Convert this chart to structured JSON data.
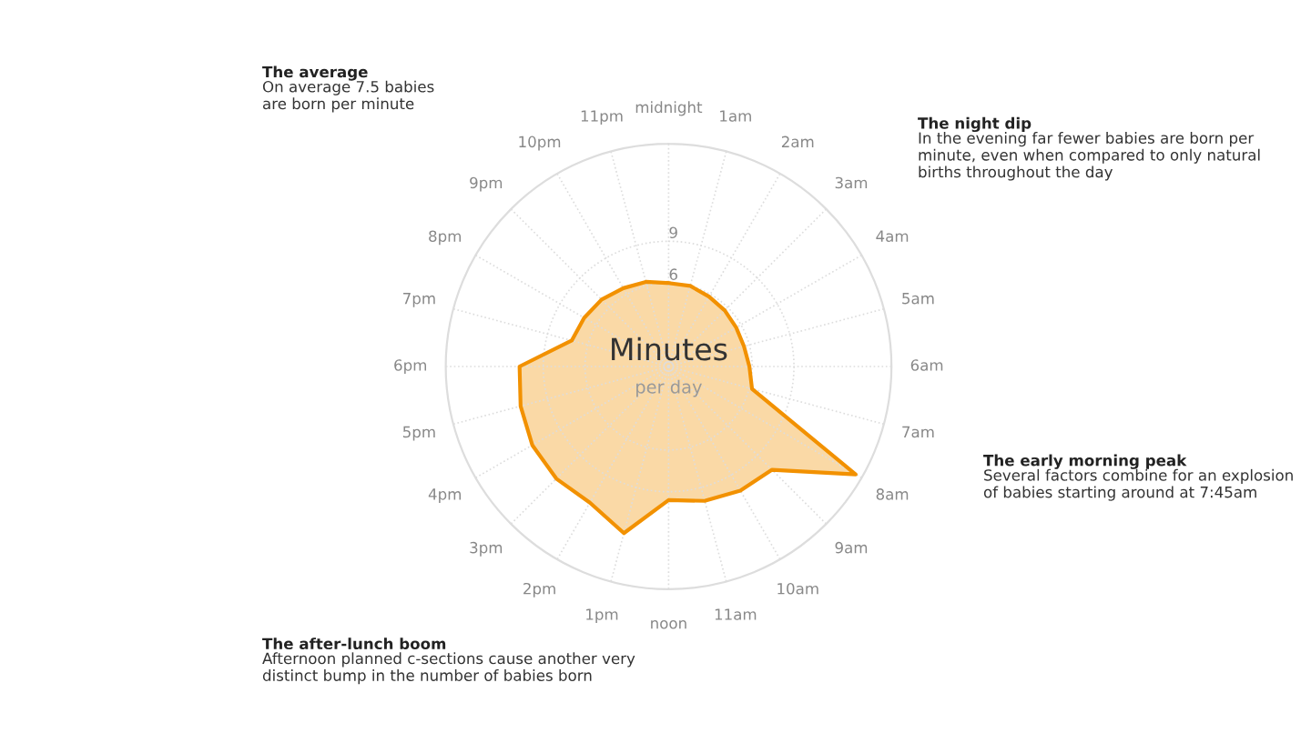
{
  "chart_data": {
    "type": "radar",
    "title": "Minutes",
    "subtitle": "per day",
    "categories": [
      "midnight",
      "1am",
      "2am",
      "3am",
      "4am",
      "5am",
      "6am",
      "7am",
      "8am",
      "9am",
      "10am",
      "11am",
      "noon",
      "1pm",
      "2pm",
      "3pm",
      "4pm",
      "5pm",
      "6pm",
      "7pm",
      "8pm",
      "9pm",
      "10pm",
      "11pm"
    ],
    "series": [
      {
        "color": "#f29100",
        "values": [
          6.0,
          6.0,
          5.8,
          5.7,
          5.6,
          5.6,
          5.8,
          6.2,
          15.5,
          10.5,
          10.3,
          10.0,
          9.6,
          12.4,
          11.3,
          11.4,
          11.3,
          11.0,
          10.7,
          7.2,
          7.0,
          6.8,
          6.5,
          6.3
        ]
      }
    ],
    "ylim": [
      0,
      16
    ],
    "yticks": [
      6,
      9
    ],
    "grid": true,
    "annotations": [
      "The average\nOn average 7.5 babies\nare born per minute",
      "The night dip\nIn the evening far fewer babies are born per\nminute, even when compared to only natural\nbirths throughout the day",
      "The early morning peak\nSeveral factors combine for an explosion\nof babies starting around at 7:45am",
      "The after-lunch boom\nAfternoon planned c-sections cause another very\ndistinct bump in the number of babies born"
    ]
  }
}
